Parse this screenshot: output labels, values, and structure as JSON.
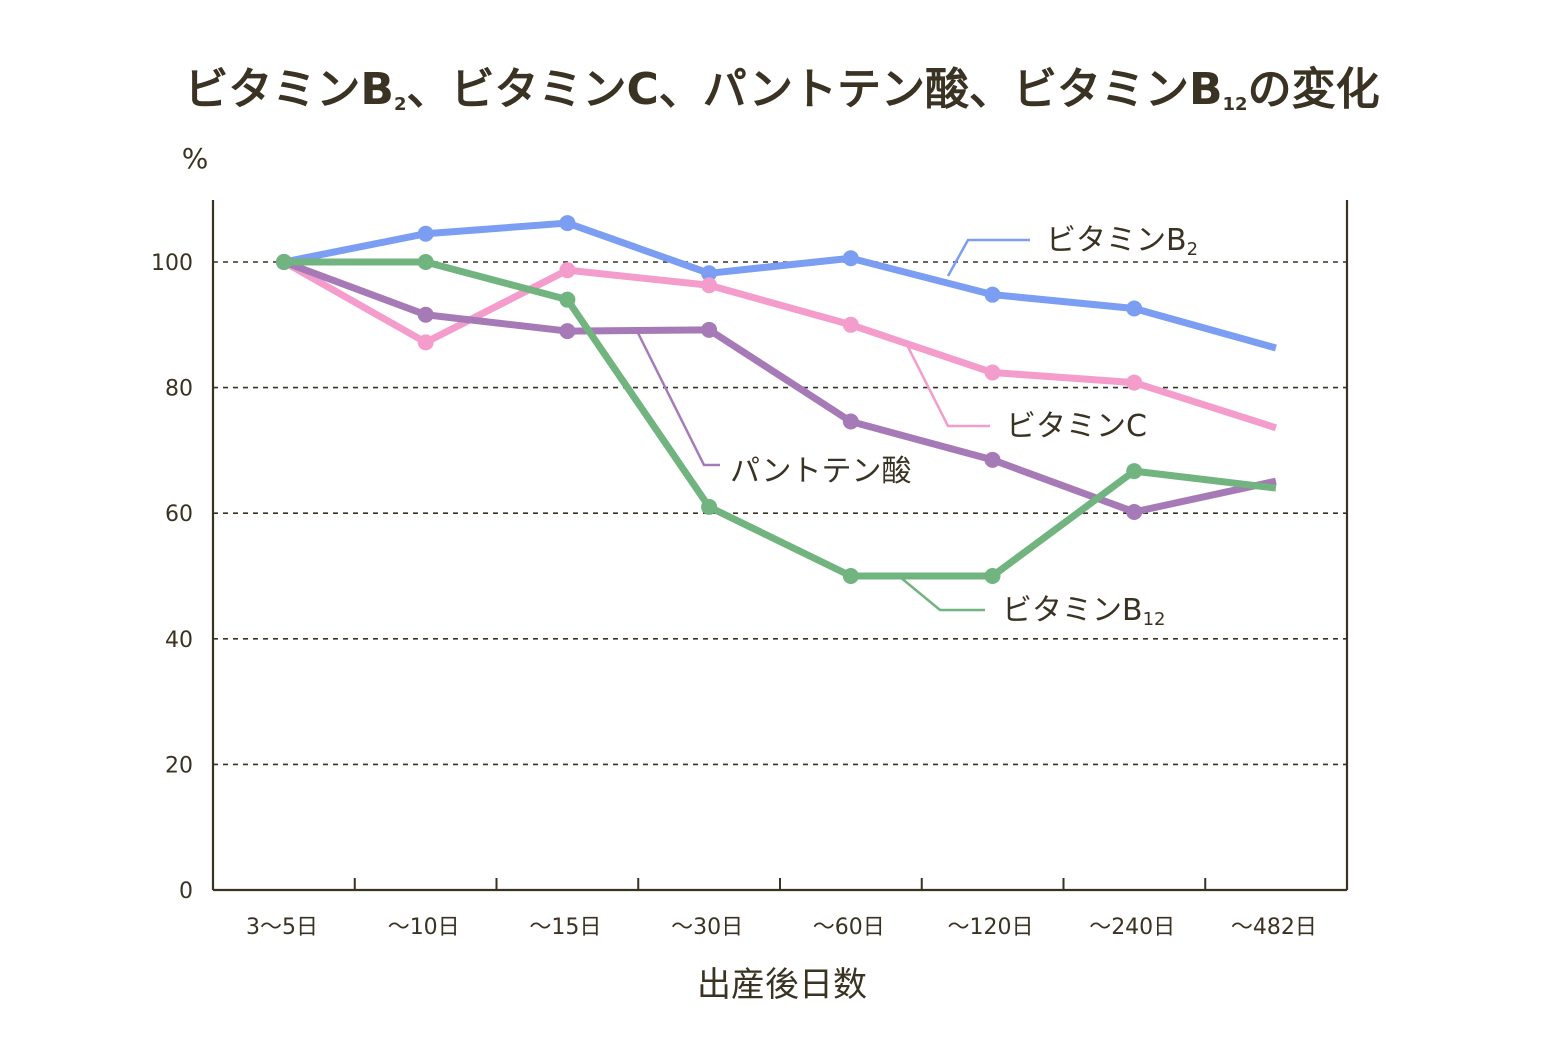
{
  "chart_data": {
    "type": "line",
    "title_parts": [
      "ビタミンB",
      "2",
      "、ビタミンC、パントテン酸、ビタミンB",
      "12",
      "の変化"
    ],
    "ylabel": "%",
    "xlabel": "出産後日数",
    "categories": [
      "3〜5日",
      "〜10日",
      "〜15日",
      "〜30日",
      "〜60日",
      "〜120日",
      "〜240日",
      "〜482日"
    ],
    "ylim": [
      0,
      110
    ],
    "yticks": [
      0,
      20,
      40,
      60,
      80,
      100
    ],
    "grid": "dashed horizontal at 20, 40, 60, 80, 100",
    "series": [
      {
        "name_main": "ビタミンB",
        "name_sub": "2",
        "color": "#7b9ef2",
        "values": [
          100,
          104.5,
          106.2,
          98.2,
          100.6,
          94.8,
          92.6,
          86.3
        ],
        "label_style": "leader line",
        "last_marker": false
      },
      {
        "name_main": "ビタミンC",
        "name_sub": "",
        "color": "#f49ccc",
        "values": [
          100,
          87.2,
          98.7,
          96.3,
          90.0,
          82.4,
          80.8,
          73.6
        ],
        "label_style": "leader line",
        "last_marker": false
      },
      {
        "name_main": "パントテン酸",
        "name_sub": "",
        "color": "#a67ab6",
        "values": [
          100,
          91.6,
          89.0,
          89.2,
          74.6,
          68.5,
          60.2,
          65.1
        ],
        "label_style": "leader line",
        "last_marker": false
      },
      {
        "name_main": "ビタミンB",
        "name_sub": "12",
        "color": "#71b47f",
        "values": [
          100,
          100,
          94.0,
          61.0,
          50.0,
          50.0,
          66.7,
          64.0
        ],
        "label_style": "leader line",
        "last_marker": false
      }
    ]
  }
}
